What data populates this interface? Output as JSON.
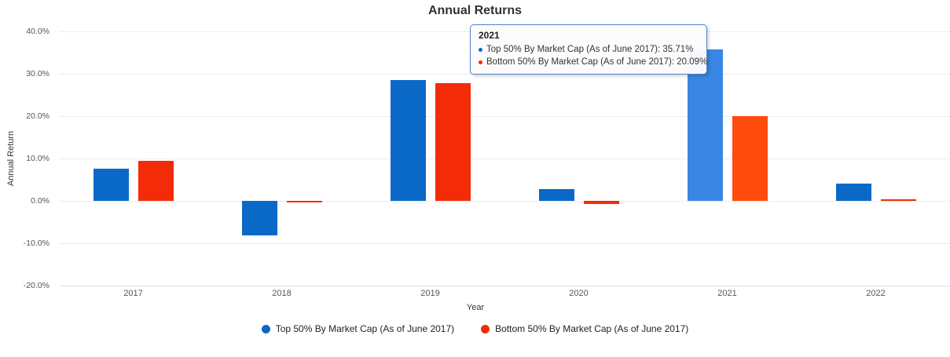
{
  "chart_title": "Annual Returns",
  "axes": {
    "x_title": "Year",
    "y_title": "Annual Return"
  },
  "legend": {
    "items": [
      {
        "label": "Top 50% By Market Cap (As of June 2017)",
        "color": "#0a69c7"
      },
      {
        "label": "Bottom 50% By Market Cap (As of June 2017)",
        "color": "#f32b08"
      }
    ]
  },
  "tooltip": {
    "title": "2021",
    "border_color": "#4e86c6",
    "items": [
      {
        "text": "Top 50% By Market Cap (As of June 2017): 35.71%",
        "color": "#0a69c7"
      },
      {
        "text": "Bottom 50% By Market Cap (As of June 2017): 20.09%",
        "color": "#f32b08"
      }
    ]
  },
  "chart_data": {
    "type": "bar",
    "title": "Annual Returns",
    "xlabel": "Year",
    "ylabel": "Annual Return",
    "categories": [
      "2017",
      "2018",
      "2019",
      "2020",
      "2021",
      "2022"
    ],
    "series": [
      {
        "name": "Top 50% By Market Cap (As of June 2017)",
        "color": "#0a69c7",
        "hover_color": "#3a86e4",
        "values": [
          7.6,
          -8.2,
          28.6,
          2.7,
          35.71,
          4.0
        ]
      },
      {
        "name": "Bottom 50% By Market Cap (As of June 2017)",
        "color": "#f32b08",
        "hover_color": "#ff4b0d",
        "values": [
          9.5,
          -0.4,
          27.8,
          -0.8,
          20.09,
          0.4
        ]
      }
    ],
    "ylim": [
      -20,
      40
    ],
    "ytick_step": 10,
    "ytick_suffix": "%",
    "grid": "horizontal",
    "legend_position": "bottom",
    "highlighted_category": "2021",
    "tooltip_shown_for": "2021"
  }
}
